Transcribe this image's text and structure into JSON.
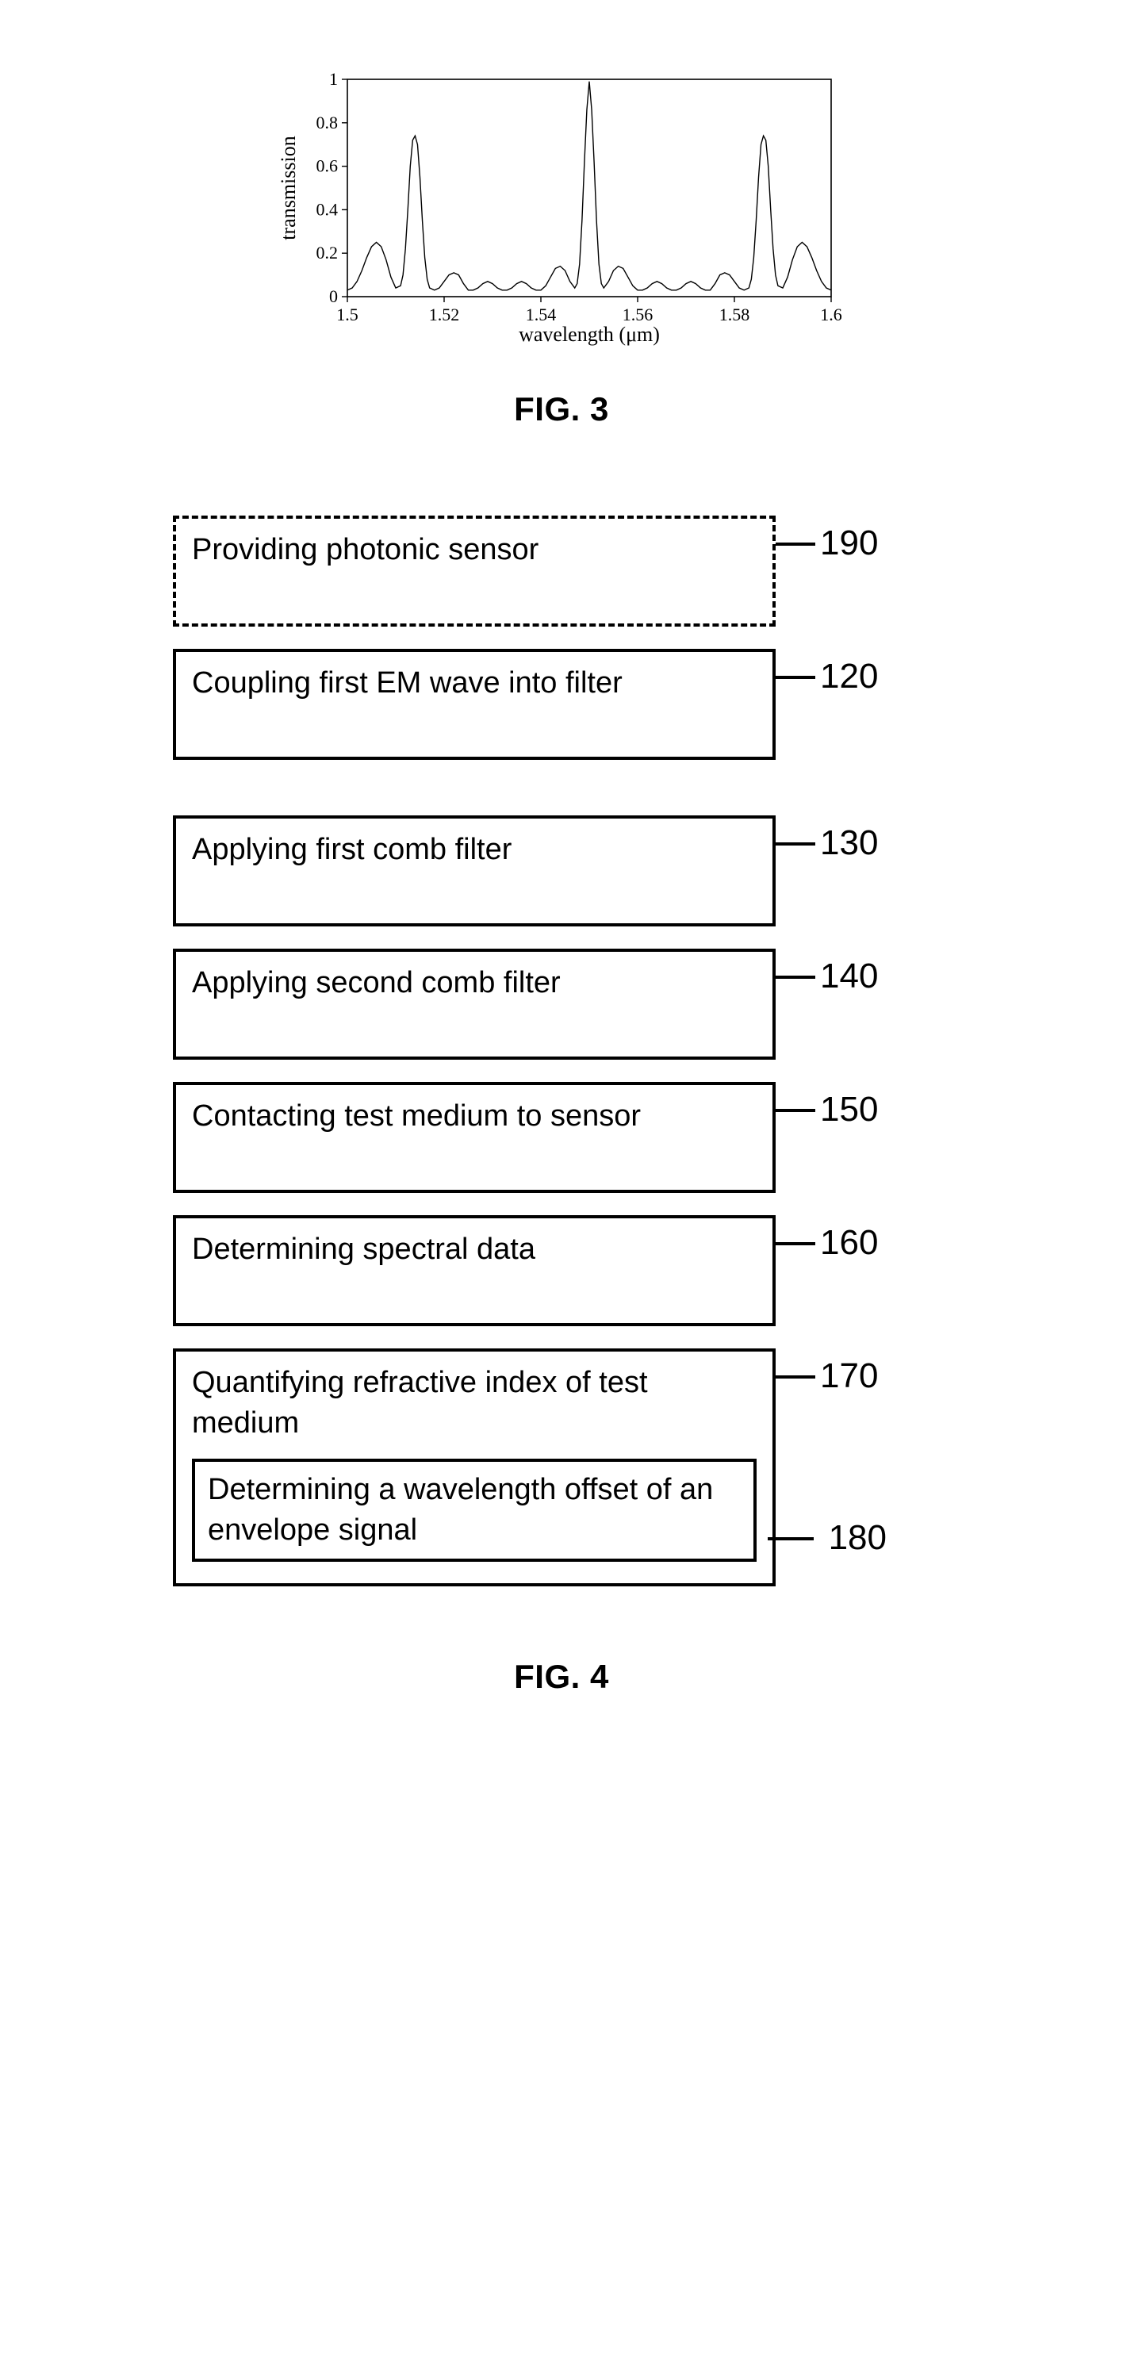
{
  "fig3": {
    "type": "line",
    "xlabel": "wavelength (μm)",
    "ylabel": "transmission",
    "xlim": [
      1.5,
      1.6
    ],
    "ylim": [
      0,
      1
    ],
    "xticks": [
      1.5,
      1.52,
      1.54,
      1.56,
      1.58,
      1.6
    ],
    "yticks": [
      0,
      0.2,
      0.4,
      0.6,
      0.8,
      1
    ],
    "line_color": "#000000",
    "line_width": 1.4,
    "background_color": "#ffffff",
    "axis_color": "#000000",
    "points": [
      [
        1.5,
        0.03
      ],
      [
        1.501,
        0.04
      ],
      [
        1.502,
        0.07
      ],
      [
        1.503,
        0.12
      ],
      [
        1.504,
        0.18
      ],
      [
        1.505,
        0.23
      ],
      [
        1.506,
        0.25
      ],
      [
        1.507,
        0.23
      ],
      [
        1.508,
        0.17
      ],
      [
        1.509,
        0.09
      ],
      [
        1.51,
        0.04
      ],
      [
        1.511,
        0.05
      ],
      [
        1.5115,
        0.1
      ],
      [
        1.512,
        0.22
      ],
      [
        1.5125,
        0.4
      ],
      [
        1.513,
        0.6
      ],
      [
        1.5135,
        0.72
      ],
      [
        1.514,
        0.74
      ],
      [
        1.5145,
        0.7
      ],
      [
        1.515,
        0.55
      ],
      [
        1.5155,
        0.35
      ],
      [
        1.516,
        0.18
      ],
      [
        1.5165,
        0.08
      ],
      [
        1.517,
        0.04
      ],
      [
        1.518,
        0.03
      ],
      [
        1.519,
        0.04
      ],
      [
        1.52,
        0.07
      ],
      [
        1.521,
        0.1
      ],
      [
        1.522,
        0.11
      ],
      [
        1.523,
        0.1
      ],
      [
        1.524,
        0.06
      ],
      [
        1.525,
        0.03
      ],
      [
        1.526,
        0.03
      ],
      [
        1.527,
        0.04
      ],
      [
        1.528,
        0.06
      ],
      [
        1.529,
        0.07
      ],
      [
        1.53,
        0.06
      ],
      [
        1.531,
        0.04
      ],
      [
        1.532,
        0.03
      ],
      [
        1.533,
        0.03
      ],
      [
        1.534,
        0.04
      ],
      [
        1.535,
        0.06
      ],
      [
        1.536,
        0.07
      ],
      [
        1.537,
        0.06
      ],
      [
        1.538,
        0.04
      ],
      [
        1.539,
        0.03
      ],
      [
        1.54,
        0.03
      ],
      [
        1.541,
        0.05
      ],
      [
        1.542,
        0.09
      ],
      [
        1.543,
        0.13
      ],
      [
        1.544,
        0.14
      ],
      [
        1.545,
        0.12
      ],
      [
        1.546,
        0.07
      ],
      [
        1.547,
        0.04
      ],
      [
        1.5475,
        0.06
      ],
      [
        1.548,
        0.15
      ],
      [
        1.5485,
        0.35
      ],
      [
        1.549,
        0.62
      ],
      [
        1.5495,
        0.86
      ],
      [
        1.55,
        0.99
      ],
      [
        1.5505,
        0.86
      ],
      [
        1.551,
        0.62
      ],
      [
        1.5515,
        0.35
      ],
      [
        1.552,
        0.15
      ],
      [
        1.5525,
        0.06
      ],
      [
        1.553,
        0.04
      ],
      [
        1.554,
        0.07
      ],
      [
        1.555,
        0.12
      ],
      [
        1.556,
        0.14
      ],
      [
        1.557,
        0.13
      ],
      [
        1.558,
        0.09
      ],
      [
        1.559,
        0.05
      ],
      [
        1.56,
        0.03
      ],
      [
        1.561,
        0.03
      ],
      [
        1.562,
        0.04
      ],
      [
        1.563,
        0.06
      ],
      [
        1.564,
        0.07
      ],
      [
        1.565,
        0.06
      ],
      [
        1.566,
        0.04
      ],
      [
        1.567,
        0.03
      ],
      [
        1.568,
        0.03
      ],
      [
        1.569,
        0.04
      ],
      [
        1.57,
        0.06
      ],
      [
        1.571,
        0.07
      ],
      [
        1.572,
        0.06
      ],
      [
        1.573,
        0.04
      ],
      [
        1.574,
        0.03
      ],
      [
        1.575,
        0.03
      ],
      [
        1.576,
        0.06
      ],
      [
        1.577,
        0.1
      ],
      [
        1.578,
        0.11
      ],
      [
        1.579,
        0.1
      ],
      [
        1.58,
        0.07
      ],
      [
        1.581,
        0.04
      ],
      [
        1.582,
        0.03
      ],
      [
        1.583,
        0.04
      ],
      [
        1.5835,
        0.08
      ],
      [
        1.584,
        0.18
      ],
      [
        1.5845,
        0.35
      ],
      [
        1.585,
        0.55
      ],
      [
        1.5855,
        0.7
      ],
      [
        1.586,
        0.74
      ],
      [
        1.5865,
        0.72
      ],
      [
        1.587,
        0.6
      ],
      [
        1.5875,
        0.4
      ],
      [
        1.588,
        0.22
      ],
      [
        1.5885,
        0.1
      ],
      [
        1.589,
        0.05
      ],
      [
        1.59,
        0.04
      ],
      [
        1.591,
        0.09
      ],
      [
        1.592,
        0.17
      ],
      [
        1.593,
        0.23
      ],
      [
        1.594,
        0.25
      ],
      [
        1.595,
        0.23
      ],
      [
        1.596,
        0.18
      ],
      [
        1.597,
        0.12
      ],
      [
        1.598,
        0.07
      ],
      [
        1.599,
        0.04
      ],
      [
        1.6,
        0.03
      ]
    ],
    "caption": "FIG. 3"
  },
  "fig4": {
    "caption": "FIG. 4",
    "steps": [
      {
        "id": "190",
        "text": "Providing photonic sensor",
        "dashed": true
      },
      {
        "id": "120",
        "text": "Coupling first EM wave into  filter",
        "dashed": false
      },
      {
        "id": "130",
        "text": "Applying first comb filter",
        "dashed": false
      },
      {
        "id": "140",
        "text": "Applying second comb filter",
        "dashed": false
      },
      {
        "id": "150",
        "text": "Contacting test medium to sensor",
        "dashed": false
      },
      {
        "id": "160",
        "text": "Determining spectral data",
        "dashed": false
      },
      {
        "id": "170",
        "text": "Quantifying refractive index of test medium",
        "dashed": false,
        "inner": {
          "id": "180",
          "text": "Determining a wavelength offset of an envelope signal"
        }
      }
    ],
    "colors": {
      "border": "#000000",
      "text": "#000000",
      "bg": "#ffffff"
    },
    "box_border_width": 4,
    "font_size_pt": 28
  }
}
